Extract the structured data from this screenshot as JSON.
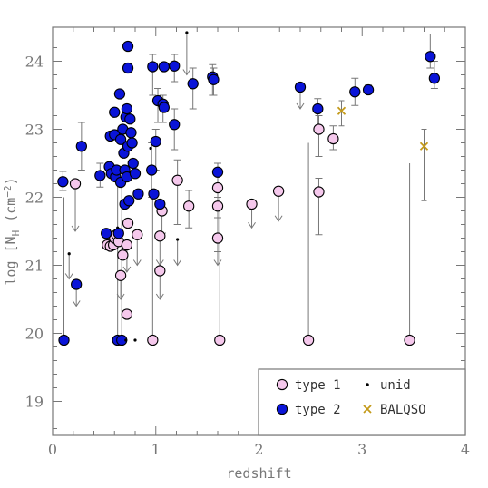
{
  "chart_data": {
    "type": "scatter",
    "xlabel": "redshift",
    "ylabel": "log [N",
    "ylabel_sub": "H",
    "ylabel_unit": " (cm",
    "ylabel_exp": "−2",
    "ylabel_close": ")",
    "xlim": [
      0,
      4
    ],
    "ylim": [
      18.5,
      24.5
    ],
    "xticks": [
      0,
      1,
      2,
      3,
      4
    ],
    "yticks": [
      19,
      20,
      21,
      22,
      23,
      24
    ],
    "grid": false,
    "legend_position": "bottom-right",
    "colors": {
      "type1_fill": "#f5c8ec",
      "type2_fill": "#0a14d8",
      "unid": "#000000",
      "balqso": "#c49a1a",
      "errorbar": "#777777"
    },
    "legend": [
      {
        "label": "type 1",
        "marker": "circle",
        "fill": "#f5c8ec"
      },
      {
        "label": "unid",
        "marker": "dot",
        "fill": "#000000"
      },
      {
        "label": "type 2",
        "marker": "circle",
        "fill": "#0a14d8"
      },
      {
        "label": "BALQSO",
        "marker": "x",
        "fill": "#c49a1a"
      }
    ],
    "series": [
      {
        "name": "type 1",
        "points": [
          {
            "x": 0.22,
            "y": 22.2,
            "lo": 21.5,
            "up": true
          },
          {
            "x": 0.53,
            "y": 21.3
          },
          {
            "x": 0.56,
            "y": 21.28
          },
          {
            "x": 0.59,
            "y": 21.3
          },
          {
            "x": 0.6,
            "y": 21.4
          },
          {
            "x": 0.62,
            "y": 21.45
          },
          {
            "x": 0.64,
            "y": 21.35
          },
          {
            "x": 0.66,
            "y": 20.85,
            "lo": 20.5,
            "up": true
          },
          {
            "x": 0.68,
            "y": 21.15
          },
          {
            "x": 0.72,
            "y": 21.3,
            "lo": 20.9,
            "up": true
          },
          {
            "x": 0.72,
            "y": 20.28
          },
          {
            "x": 0.73,
            "y": 21.62
          },
          {
            "x": 0.82,
            "y": 21.45,
            "lo": 21.0,
            "up": true
          },
          {
            "x": 0.97,
            "y": 19.9,
            "hi": 22.0
          },
          {
            "x": 1.04,
            "y": 20.92,
            "lo": 20.5,
            "up": true
          },
          {
            "x": 1.04,
            "y": 21.43,
            "lo": 21.0,
            "up": true
          },
          {
            "x": 1.06,
            "y": 21.8,
            "lo": 21.4,
            "up": true
          },
          {
            "x": 1.21,
            "y": 22.25,
            "lo": 21.6,
            "hi": 22.55
          },
          {
            "x": 1.32,
            "y": 21.87,
            "lo": 21.55,
            "hi": 22.1
          },
          {
            "x": 1.6,
            "y": 22.14,
            "lo": 21.7,
            "hi": 22.5
          },
          {
            "x": 1.6,
            "y": 21.87,
            "lo": 21.2,
            "hi": 22.2
          },
          {
            "x": 1.6,
            "y": 21.4,
            "lo": 21.0,
            "up": true
          },
          {
            "x": 1.62,
            "y": 19.9,
            "hi": 22.0
          },
          {
            "x": 1.93,
            "y": 21.9,
            "lo": 21.55,
            "up": true
          },
          {
            "x": 2.19,
            "y": 22.09,
            "lo": 21.65,
            "up": true
          },
          {
            "x": 2.48,
            "y": 19.9,
            "hi": 22.8
          },
          {
            "x": 2.58,
            "y": 23.0,
            "lo": 22.6,
            "hi": 23.2
          },
          {
            "x": 2.58,
            "y": 22.08,
            "lo": 21.45,
            "hi": 22.28
          },
          {
            "x": 2.72,
            "y": 22.86,
            "lo": 22.7,
            "hi": 23.05
          },
          {
            "x": 3.46,
            "y": 19.9,
            "hi": 22.5
          }
        ]
      },
      {
        "name": "type 2",
        "points": [
          {
            "x": 0.1,
            "y": 22.23,
            "lo": 22.1,
            "hi": 22.38
          },
          {
            "x": 0.11,
            "y": 19.9,
            "hi": 22.0
          },
          {
            "x": 0.23,
            "y": 20.72,
            "lo": 20.4,
            "up": true
          },
          {
            "x": 0.28,
            "y": 22.75,
            "lo": 22.4,
            "hi": 23.1
          },
          {
            "x": 0.46,
            "y": 22.32,
            "lo": 22.15,
            "hi": 22.5
          },
          {
            "x": 0.52,
            "y": 21.47
          },
          {
            "x": 0.55,
            "y": 22.45
          },
          {
            "x": 0.56,
            "y": 22.9
          },
          {
            "x": 0.57,
            "y": 22.35
          },
          {
            "x": 0.6,
            "y": 23.25
          },
          {
            "x": 0.6,
            "y": 22.92
          },
          {
            "x": 0.61,
            "y": 22.3
          },
          {
            "x": 0.62,
            "y": 22.4
          },
          {
            "x": 0.63,
            "y": 19.9,
            "hi": 22.3
          },
          {
            "x": 0.64,
            "y": 21.47
          },
          {
            "x": 0.65,
            "y": 23.52
          },
          {
            "x": 0.66,
            "y": 22.85
          },
          {
            "x": 0.66,
            "y": 22.22
          },
          {
            "x": 0.67,
            "y": 19.9,
            "hi": 22.4
          },
          {
            "x": 0.68,
            "y": 23.0
          },
          {
            "x": 0.69,
            "y": 22.65
          },
          {
            "x": 0.7,
            "y": 22.4
          },
          {
            "x": 0.7,
            "y": 21.9
          },
          {
            "x": 0.71,
            "y": 23.18
          },
          {
            "x": 0.72,
            "y": 23.3
          },
          {
            "x": 0.72,
            "y": 22.3
          },
          {
            "x": 0.73,
            "y": 24.22
          },
          {
            "x": 0.73,
            "y": 23.9
          },
          {
            "x": 0.73,
            "y": 22.75
          },
          {
            "x": 0.74,
            "y": 21.95
          },
          {
            "x": 0.75,
            "y": 23.15
          },
          {
            "x": 0.76,
            "y": 22.95
          },
          {
            "x": 0.77,
            "y": 22.8
          },
          {
            "x": 0.78,
            "y": 22.5
          },
          {
            "x": 0.8,
            "y": 22.35
          },
          {
            "x": 0.83,
            "y": 22.05
          },
          {
            "x": 0.96,
            "y": 22.4,
            "lo": 22.0,
            "hi": 22.8
          },
          {
            "x": 0.97,
            "y": 23.92,
            "lo": 23.5,
            "hi": 24.1
          },
          {
            "x": 0.98,
            "y": 22.05
          },
          {
            "x": 1.0,
            "y": 22.82,
            "lo": 22.4,
            "hi": 23.0
          },
          {
            "x": 1.02,
            "y": 23.42,
            "lo": 23.1,
            "hi": 23.6
          },
          {
            "x": 1.04,
            "y": 21.9
          },
          {
            "x": 1.07,
            "y": 23.37,
            "lo": 23.1,
            "hi": 23.5
          },
          {
            "x": 1.08,
            "y": 23.32
          },
          {
            "x": 1.08,
            "y": 23.92
          },
          {
            "x": 1.18,
            "y": 23.93,
            "lo": 23.7,
            "hi": 24.1
          },
          {
            "x": 1.18,
            "y": 23.07,
            "lo": 22.7,
            "hi": 23.3
          },
          {
            "x": 1.36,
            "y": 23.67,
            "lo": 23.3,
            "hi": 23.9
          },
          {
            "x": 1.55,
            "y": 23.77,
            "lo": 23.5,
            "hi": 23.95
          },
          {
            "x": 1.56,
            "y": 23.73,
            "lo": 23.5,
            "hi": 23.9
          },
          {
            "x": 1.6,
            "y": 22.37,
            "lo": 22.0,
            "hi": 22.5
          },
          {
            "x": 2.4,
            "y": 23.62,
            "lo": 23.3,
            "up": true
          },
          {
            "x": 2.57,
            "y": 23.3,
            "lo": 23.0,
            "hi": 23.45
          },
          {
            "x": 2.93,
            "y": 23.55,
            "lo": 23.35,
            "hi": 23.75
          },
          {
            "x": 3.06,
            "y": 23.58,
            "lo": 23.52,
            "hi": 23.65
          },
          {
            "x": 3.66,
            "y": 24.07,
            "lo": 23.9,
            "hi": 24.4
          },
          {
            "x": 3.7,
            "y": 23.75,
            "lo": 23.6,
            "hi": 24.0
          }
        ]
      },
      {
        "name": "unid",
        "points": [
          {
            "x": 0.16,
            "y": 21.17,
            "lo": 20.8,
            "up": true
          },
          {
            "x": 0.63,
            "y": 21.55
          },
          {
            "x": 0.71,
            "y": 19.9
          },
          {
            "x": 0.8,
            "y": 19.9
          },
          {
            "x": 0.95,
            "y": 22.72
          },
          {
            "x": 1.21,
            "y": 21.38,
            "lo": 21.0,
            "up": true
          },
          {
            "x": 1.3,
            "y": 24.42,
            "lo": 23.8,
            "up": true
          }
        ]
      },
      {
        "name": "BALQSO",
        "points": [
          {
            "x": 2.8,
            "y": 23.27,
            "lo": 23.05,
            "hi": 23.42
          },
          {
            "x": 3.6,
            "y": 22.75,
            "lo": 21.95,
            "hi": 23.0
          }
        ]
      }
    ]
  }
}
